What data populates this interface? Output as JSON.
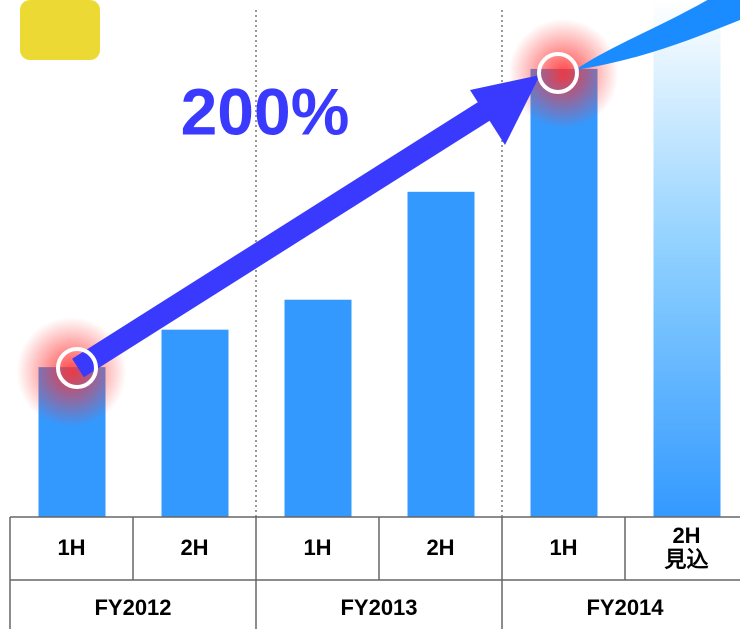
{
  "chart_data": {
    "type": "bar",
    "categories": [
      [
        "1H"
      ],
      [
        "2H"
      ],
      [
        "1H"
      ],
      [
        "2H"
      ],
      [
        "1H"
      ],
      [
        "2H",
        "見込"
      ]
    ],
    "groups": [
      "FY2012",
      "FY2013",
      "FY2014"
    ],
    "values": [
      100,
      125,
      145,
      217,
      299,
      345
    ],
    "color": "#3399ff",
    "ylim": [
      0,
      345
    ],
    "annotation": "200%"
  }
}
